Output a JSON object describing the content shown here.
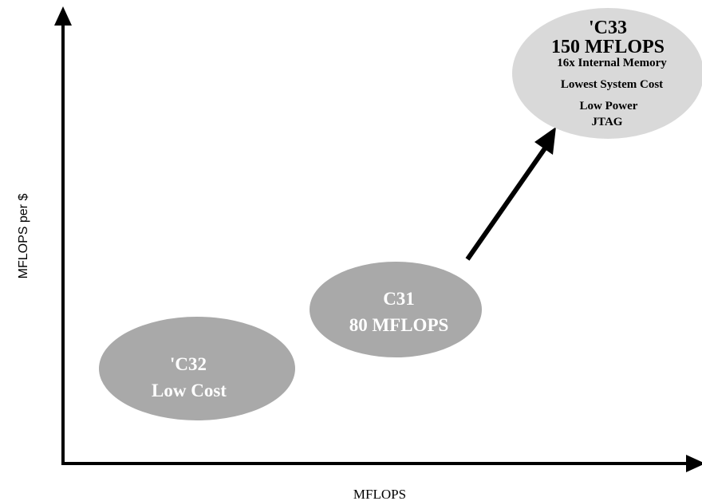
{
  "axes": {
    "x_label": "MFLOPS",
    "y_label": "MFLOPS per $"
  },
  "colors": {
    "background": "#ffffff",
    "axis": "#000000",
    "dark_ellipse": "#a9a9a9",
    "light_ellipse": "#d9d9d9",
    "dark_ellipse_text": "#ffffff",
    "light_ellipse_text": "#000000"
  },
  "nodes": {
    "c32": {
      "title": "'C32",
      "subtitle": "Low Cost"
    },
    "c31": {
      "title": "C31",
      "subtitle": "80 MFLOPS"
    },
    "c33": {
      "title": "'C33",
      "subtitle": "150 MFLOPS",
      "features": [
        "16x Internal Memory",
        "Lowest System Cost",
        "Low Power",
        "JTAG"
      ]
    }
  },
  "arrow": {
    "from": "c31",
    "to": "c33",
    "icon": "arrow-up-right-icon"
  }
}
